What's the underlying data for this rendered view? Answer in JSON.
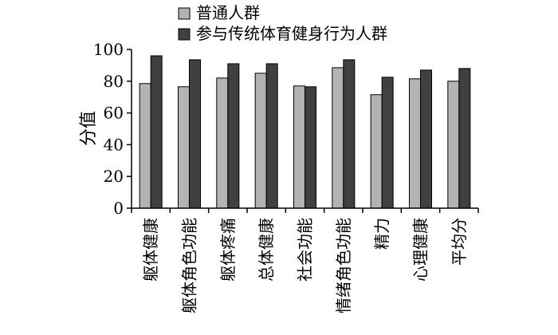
{
  "chart_data": {
    "type": "bar",
    "ylabel": "分值",
    "ylim": [
      0,
      100
    ],
    "yticks": [
      "0",
      "20",
      "40",
      "60",
      "80",
      "100"
    ],
    "categories": [
      "躯体健康",
      "躯体角色功能",
      "躯体疼痛",
      "总体健康",
      "社会功能",
      "情绪角色功能",
      "精力",
      "心理健康",
      "平均分"
    ],
    "series": [
      {
        "name": "普通人群",
        "color": "#b3b3b3",
        "values": [
          78.5,
          76.5,
          82,
          85,
          77,
          88.5,
          71.5,
          81.5,
          80
        ]
      },
      {
        "name": "参与传统体育健身行为人群",
        "color": "#404040",
        "values": [
          96,
          93.5,
          91,
          91,
          76.5,
          93.5,
          82.5,
          87,
          88
        ]
      }
    ],
    "legend_position": "top",
    "grid": false
  }
}
